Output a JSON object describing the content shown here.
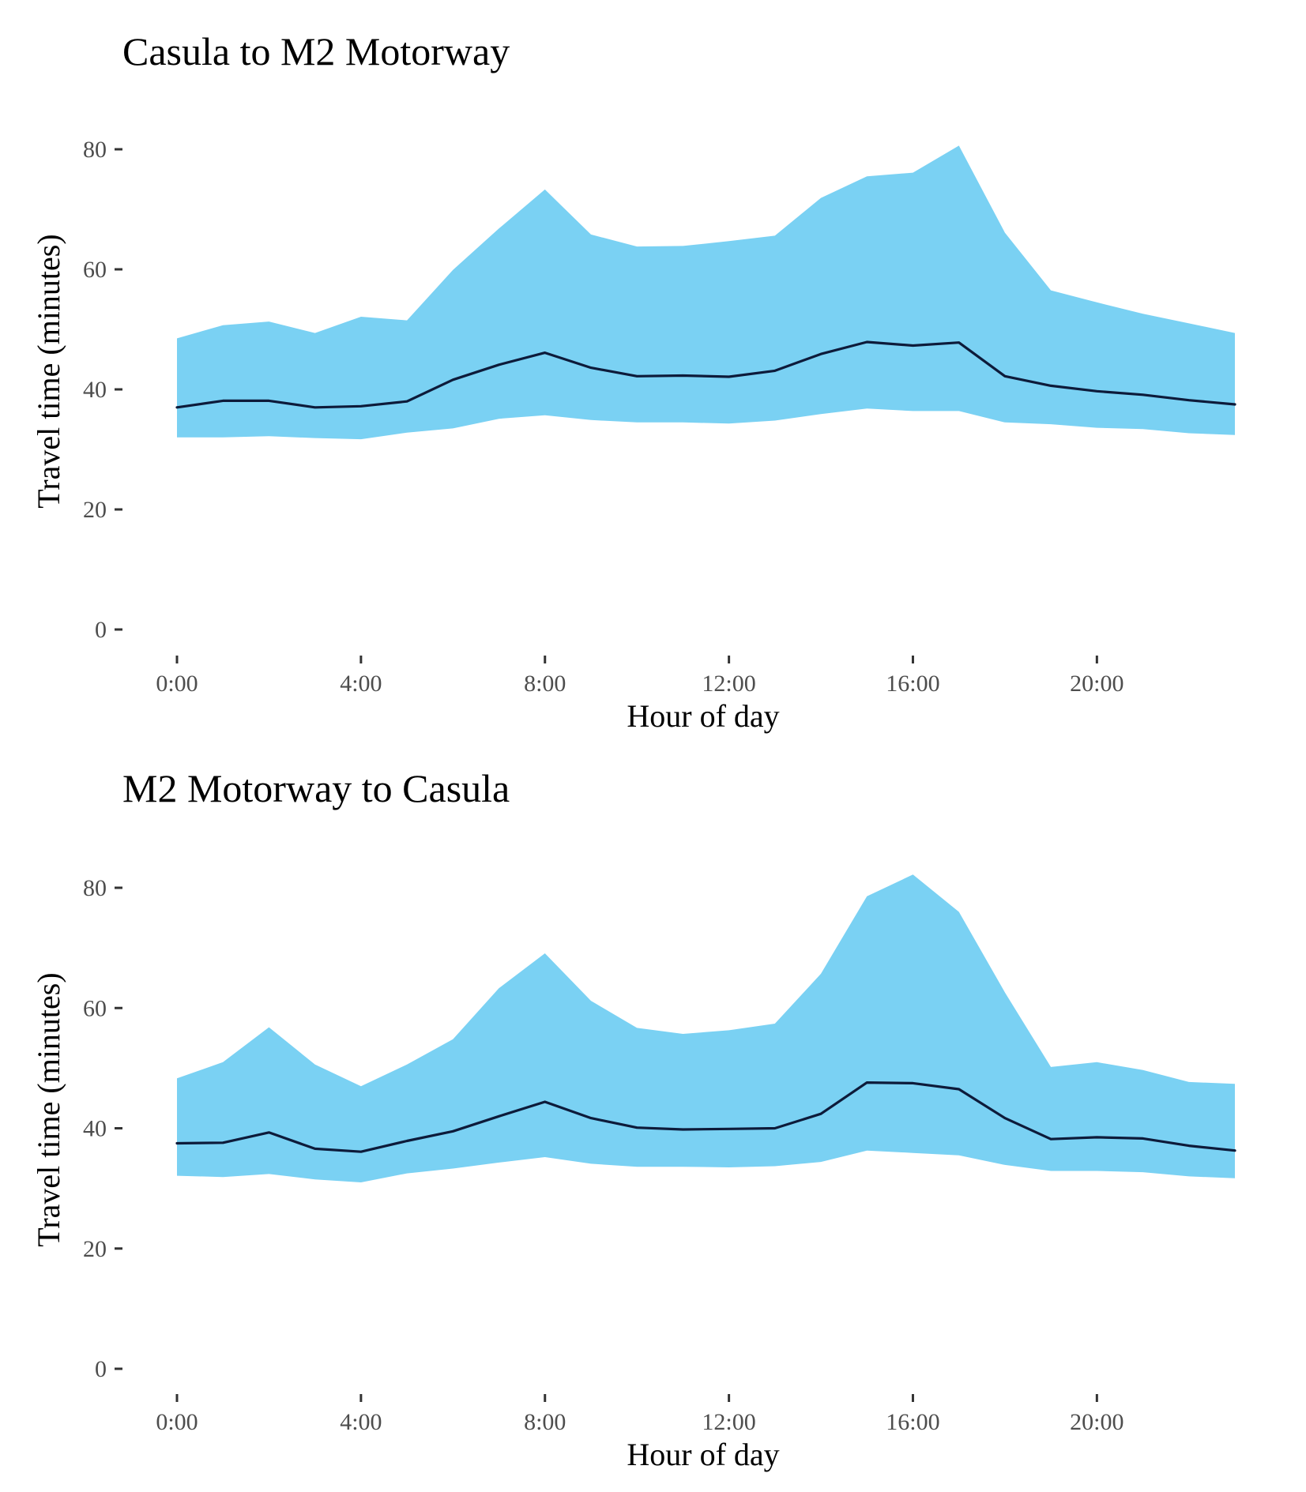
{
  "colors": {
    "band_fill": "#7AD1F3",
    "line_color": "#0D1B3A",
    "tick_text": "#4d4d4d",
    "background": "#ffffff"
  },
  "chart_data": [
    {
      "type": "area",
      "title": "Casula to M2 Motorway",
      "xlabel": "Hour of day",
      "ylabel": "Travel time (minutes)",
      "x_ticks": [
        0,
        4,
        8,
        12,
        16,
        20
      ],
      "x_tick_labels": [
        "0:00",
        "4:00",
        "8:00",
        "12:00",
        "16:00",
        "20:00"
      ],
      "y_ticks": [
        0,
        20,
        40,
        60,
        80
      ],
      "y_tick_labels": [
        "0",
        "20",
        "40",
        "60",
        "80"
      ],
      "xlim": [
        -1.2,
        23.8
      ],
      "ylim": [
        -4,
        90
      ],
      "grid": false,
      "legend": "none",
      "x": [
        0,
        1,
        2,
        3,
        4,
        5,
        6,
        7,
        8,
        9,
        10,
        11,
        12,
        13,
        14,
        15,
        16,
        17,
        18,
        19,
        20,
        21,
        22,
        23
      ],
      "series": [
        {
          "role": "band_upper",
          "values": [
            48.5,
            50.7,
            51.3,
            49.4,
            52.1,
            51.5,
            59.9,
            66.8,
            73.3,
            65.8,
            63.8,
            63.9,
            64.7,
            65.6,
            71.9,
            75.5,
            76.1,
            80.6,
            66.1,
            56.5,
            54.5,
            52.6,
            51.0,
            49.4
          ]
        },
        {
          "role": "median",
          "values": [
            37.0,
            38.1,
            38.1,
            37.0,
            37.2,
            38.0,
            41.6,
            44.1,
            46.1,
            43.6,
            42.2,
            42.3,
            42.1,
            43.1,
            45.9,
            47.9,
            47.3,
            47.8,
            42.2,
            40.6,
            39.7,
            39.1,
            38.2,
            37.5
          ]
        },
        {
          "role": "band_lower",
          "values": [
            32.0,
            32.0,
            32.2,
            31.9,
            31.7,
            32.8,
            33.5,
            35.1,
            35.7,
            34.9,
            34.5,
            34.5,
            34.3,
            34.8,
            35.9,
            36.8,
            36.4,
            36.4,
            34.5,
            34.2,
            33.6,
            33.4,
            32.7,
            32.4
          ]
        }
      ]
    },
    {
      "type": "area",
      "title": "M2 Motorway to Casula",
      "xlabel": "Hour of day",
      "ylabel": "Travel time (minutes)",
      "x_ticks": [
        0,
        4,
        8,
        12,
        16,
        20
      ],
      "x_tick_labels": [
        "0:00",
        "4:00",
        "8:00",
        "12:00",
        "16:00",
        "20:00"
      ],
      "y_ticks": [
        0,
        20,
        40,
        60,
        80
      ],
      "y_tick_labels": [
        "0",
        "20",
        "40",
        "60",
        "80"
      ],
      "xlim": [
        -1.2,
        23.8
      ],
      "ylim": [
        -4,
        90
      ],
      "grid": false,
      "legend": "none",
      "x": [
        0,
        1,
        2,
        3,
        4,
        5,
        6,
        7,
        8,
        9,
        10,
        11,
        12,
        13,
        14,
        15,
        16,
        17,
        18,
        19,
        20,
        21,
        22,
        23
      ],
      "series": [
        {
          "role": "band_upper",
          "values": [
            48.3,
            51.0,
            56.8,
            50.6,
            47.0,
            50.6,
            54.8,
            63.3,
            69.1,
            61.2,
            56.7,
            55.7,
            56.3,
            57.4,
            65.7,
            78.6,
            82.2,
            76.0,
            62.6,
            50.2,
            51.0,
            49.7,
            47.7,
            47.4
          ]
        },
        {
          "role": "median",
          "values": [
            37.5,
            37.6,
            39.3,
            36.6,
            36.1,
            37.9,
            39.5,
            42.0,
            44.4,
            41.7,
            40.1,
            39.8,
            39.9,
            40.0,
            42.4,
            47.6,
            47.5,
            46.5,
            41.7,
            38.2,
            38.5,
            38.3,
            37.1,
            36.3
          ]
        },
        {
          "role": "band_lower",
          "values": [
            32.1,
            31.9,
            32.4,
            31.5,
            31.0,
            32.5,
            33.3,
            34.3,
            35.2,
            34.1,
            33.6,
            33.6,
            33.5,
            33.7,
            34.4,
            36.3,
            35.9,
            35.5,
            33.9,
            32.9,
            32.9,
            32.7,
            32.0,
            31.7
          ]
        }
      ]
    }
  ]
}
